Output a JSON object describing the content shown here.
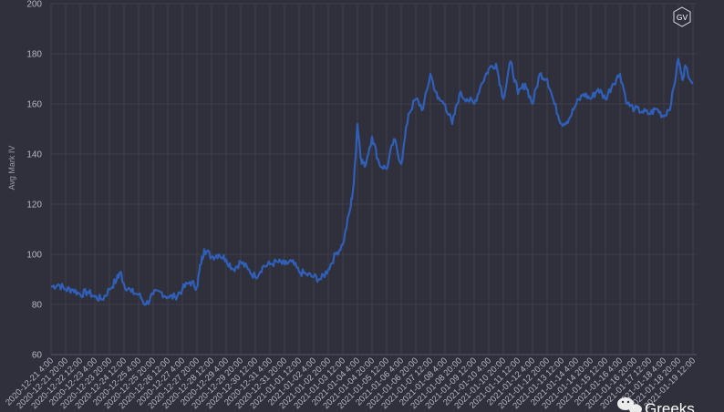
{
  "badge": {
    "text": "GV"
  },
  "watermark": {
    "text": "Greeks"
  },
  "colors": {
    "background": "#30303c",
    "line": "#2f5fb6",
    "grid": "#3e3e4b",
    "text": "#b7b7c2"
  },
  "chart_data": {
    "type": "line",
    "title": "",
    "xlabel": "",
    "ylabel": "Avg Mark IV",
    "ylim": [
      60,
      200
    ],
    "yticks": [
      60,
      80,
      100,
      120,
      140,
      160,
      180,
      200
    ],
    "grid": true,
    "x_tick_labels": [
      "2020-12-21 4:00",
      "2020-12-21 20:00",
      "2020-12-22 12:00",
      "2020-12-23 4:00",
      "2020-12-23 20:00",
      "2020-12-24 12:00",
      "2020-12-25 4:00",
      "2020-12-25 20:00",
      "2020-12-26 12:00",
      "2020-12-27 4:00",
      "2020-12-27 20:00",
      "2020-12-28 12:00",
      "2020-12-29 4:00",
      "2020-12-29 20:00",
      "2020-12-30 12:00",
      "2020-12-31 4:00",
      "2020-12-31 20:00",
      "2021-01-01 12:00",
      "2021-01-02 4:00",
      "2021-01-02 20:00",
      "2021-01-03 12:00",
      "2021-01-04 4:00",
      "2021-01-04 20:00",
      "2021-01-05 12:00",
      "2021-01-06 4:00",
      "2021-01-06 20:00",
      "2021-01-07 12:00",
      "2021-01-08 4:00",
      "2021-01-08 20:00",
      "2021-01-09 12:00",
      "2021-01-10 4:00",
      "2021-01-10 20:00",
      "2021-01-11 12:00",
      "2021-01-12 4:00",
      "2021-01-12 20:00",
      "2021-01-13 12:00",
      "2021-01-14 4:00",
      "2021-01-14 20:00",
      "2021-01-15 12:00",
      "2021-01-16 4:00",
      "2021-01-16 20:00",
      "2021-01-17 12:00",
      "2021-01-18 4:00",
      "2021-01-18 20:00",
      "2021-01-19 12:00"
    ],
    "series": [
      {
        "values": [
          {
            "x": "2020-12-21 4:00",
            "y": 87
          },
          {
            "x": "2020-12-21 12:00",
            "y": 88
          },
          {
            "x": "2020-12-21 20:00",
            "y": 86
          },
          {
            "x": "2020-12-22 4:00",
            "y": 86
          },
          {
            "x": "2020-12-22 12:00",
            "y": 84
          },
          {
            "x": "2020-12-22 20:00",
            "y": 85
          },
          {
            "x": "2020-12-23 4:00",
            "y": 83
          },
          {
            "x": "2020-12-23 12:00",
            "y": 82
          },
          {
            "x": "2020-12-23 20:00",
            "y": 86
          },
          {
            "x": "2020-12-24 4:00",
            "y": 90
          },
          {
            "x": "2020-12-24 8:00",
            "y": 93
          },
          {
            "x": "2020-12-24 12:00",
            "y": 88
          },
          {
            "x": "2020-12-24 20:00",
            "y": 85
          },
          {
            "x": "2020-12-25 4:00",
            "y": 84
          },
          {
            "x": "2020-12-25 12:00",
            "y": 80
          },
          {
            "x": "2020-12-25 20:00",
            "y": 84
          },
          {
            "x": "2020-12-26 4:00",
            "y": 85
          },
          {
            "x": "2020-12-26 12:00",
            "y": 83
          },
          {
            "x": "2020-12-26 20:00",
            "y": 83
          },
          {
            "x": "2020-12-27 4:00",
            "y": 86
          },
          {
            "x": "2020-12-27 12:00",
            "y": 89
          },
          {
            "x": "2020-12-27 20:00",
            "y": 87
          },
          {
            "x": "2020-12-28 0:00",
            "y": 96
          },
          {
            "x": "2020-12-28 4:00",
            "y": 102
          },
          {
            "x": "2020-12-28 12:00",
            "y": 99
          },
          {
            "x": "2020-12-28 20:00",
            "y": 100
          },
          {
            "x": "2020-12-29 4:00",
            "y": 98
          },
          {
            "x": "2020-12-29 12:00",
            "y": 94
          },
          {
            "x": "2020-12-29 20:00",
            "y": 97
          },
          {
            "x": "2020-12-30 4:00",
            "y": 94
          },
          {
            "x": "2020-12-30 12:00",
            "y": 91
          },
          {
            "x": "2020-12-30 20:00",
            "y": 95
          },
          {
            "x": "2020-12-31 4:00",
            "y": 96
          },
          {
            "x": "2020-12-31 12:00",
            "y": 97
          },
          {
            "x": "2020-12-31 20:00",
            "y": 96
          },
          {
            "x": "2021-01-01 4:00",
            "y": 97
          },
          {
            "x": "2021-01-01 12:00",
            "y": 93
          },
          {
            "x": "2021-01-01 20:00",
            "y": 92
          },
          {
            "x": "2021-01-02 4:00",
            "y": 91
          },
          {
            "x": "2021-01-02 12:00",
            "y": 90
          },
          {
            "x": "2021-01-02 20:00",
            "y": 94
          },
          {
            "x": "2021-01-03 4:00",
            "y": 100
          },
          {
            "x": "2021-01-03 12:00",
            "y": 104
          },
          {
            "x": "2021-01-03 20:00",
            "y": 118
          },
          {
            "x": "2021-01-04 0:00",
            "y": 128
          },
          {
            "x": "2021-01-04 4:00",
            "y": 152
          },
          {
            "x": "2021-01-04 8:00",
            "y": 138
          },
          {
            "x": "2021-01-04 12:00",
            "y": 135
          },
          {
            "x": "2021-01-04 20:00",
            "y": 147
          },
          {
            "x": "2021-01-05 4:00",
            "y": 136
          },
          {
            "x": "2021-01-05 12:00",
            "y": 134
          },
          {
            "x": "2021-01-05 20:00",
            "y": 146
          },
          {
            "x": "2021-01-06 4:00",
            "y": 136
          },
          {
            "x": "2021-01-06 12:00",
            "y": 156
          },
          {
            "x": "2021-01-06 20:00",
            "y": 162
          },
          {
            "x": "2021-01-07 4:00",
            "y": 158
          },
          {
            "x": "2021-01-07 12:00",
            "y": 172
          },
          {
            "x": "2021-01-07 20:00",
            "y": 162
          },
          {
            "x": "2021-01-08 4:00",
            "y": 160
          },
          {
            "x": "2021-01-08 12:00",
            "y": 152
          },
          {
            "x": "2021-01-08 20:00",
            "y": 164
          },
          {
            "x": "2021-01-09 4:00",
            "y": 162
          },
          {
            "x": "2021-01-09 12:00",
            "y": 160
          },
          {
            "x": "2021-01-09 20:00",
            "y": 168
          },
          {
            "x": "2021-01-10 4:00",
            "y": 174
          },
          {
            "x": "2021-01-10 12:00",
            "y": 176
          },
          {
            "x": "2021-01-10 20:00",
            "y": 162
          },
          {
            "x": "2021-01-11 4:00",
            "y": 177
          },
          {
            "x": "2021-01-11 12:00",
            "y": 164
          },
          {
            "x": "2021-01-11 20:00",
            "y": 168
          },
          {
            "x": "2021-01-12 4:00",
            "y": 160
          },
          {
            "x": "2021-01-12 12:00",
            "y": 172
          },
          {
            "x": "2021-01-12 20:00",
            "y": 170
          },
          {
            "x": "2021-01-13 4:00",
            "y": 160
          },
          {
            "x": "2021-01-13 12:00",
            "y": 152
          },
          {
            "x": "2021-01-13 20:00",
            "y": 154
          },
          {
            "x": "2021-01-14 4:00",
            "y": 160
          },
          {
            "x": "2021-01-14 12:00",
            "y": 164
          },
          {
            "x": "2021-01-14 20:00",
            "y": 162
          },
          {
            "x": "2021-01-15 4:00",
            "y": 166
          },
          {
            "x": "2021-01-15 12:00",
            "y": 162
          },
          {
            "x": "2021-01-15 20:00",
            "y": 168
          },
          {
            "x": "2021-01-16 4:00",
            "y": 172
          },
          {
            "x": "2021-01-16 12:00",
            "y": 160
          },
          {
            "x": "2021-01-16 20:00",
            "y": 158
          },
          {
            "x": "2021-01-17 4:00",
            "y": 157
          },
          {
            "x": "2021-01-17 12:00",
            "y": 156
          },
          {
            "x": "2021-01-17 20:00",
            "y": 158
          },
          {
            "x": "2021-01-18 4:00",
            "y": 155
          },
          {
            "x": "2021-01-18 12:00",
            "y": 160
          },
          {
            "x": "2021-01-18 20:00",
            "y": 178
          },
          {
            "x": "2021-01-19 0:00",
            "y": 170
          },
          {
            "x": "2021-01-19 4:00",
            "y": 175
          },
          {
            "x": "2021-01-19 12:00",
            "y": 168
          }
        ]
      }
    ]
  }
}
